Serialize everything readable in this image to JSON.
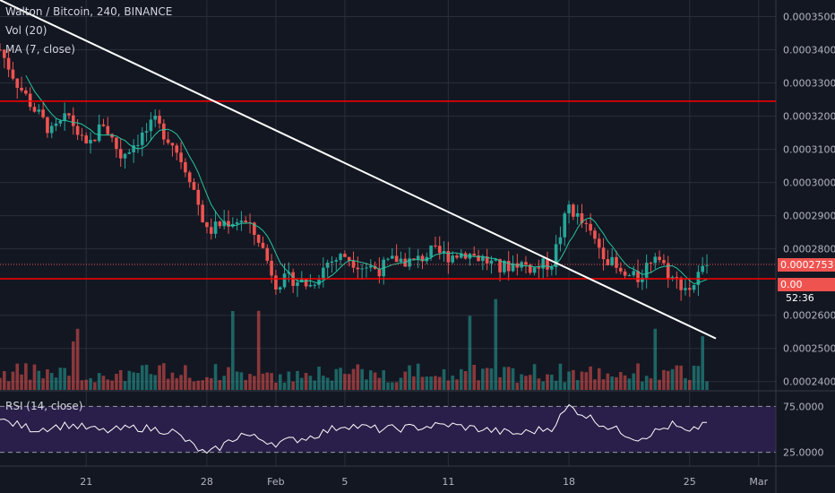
{
  "legend": {
    "symbol": "Walton / Bitcoin, 240, BINANCE",
    "vol": "Vol (20)",
    "ma": "MA (7, close)",
    "rsi": "RSI (14, close)"
  },
  "price_axis": {
    "ticks": [
      "0.0003500",
      "0.0003400",
      "0.0003300",
      "0.0003200",
      "0.0003100",
      "0.0003000",
      "0.0002900",
      "0.0002800",
      "0.0002600",
      "0.0002500",
      "0.0002400"
    ],
    "tick_values": [
      0.00035,
      0.00034,
      0.00033,
      0.00032,
      0.00031,
      0.0003,
      0.00029,
      0.00028,
      0.00026,
      0.00025,
      0.00024
    ],
    "current_price": "0.0002753",
    "current_value": 0.0002753,
    "countdown": "52:36",
    "partial_label": "0.00",
    "partial_value": 0.000272
  },
  "rsi_axis": {
    "ticks": [
      "75.0000",
      "25.0000"
    ],
    "tick_values": [
      75,
      25
    ]
  },
  "time_axis": {
    "labels": [
      "21",
      "28",
      "Feb",
      "5",
      "11",
      "18",
      "25",
      "Mar"
    ]
  },
  "drawings": {
    "resistance": 0.0003245,
    "support": 0.000271,
    "trendline_from": {
      "date": "Jan 16",
      "price": 0.000355
    },
    "trendline_to": {
      "date": "Feb 26",
      "price": 0.000253
    }
  },
  "colors": {
    "background": "#131722",
    "grid": "#2a2e39",
    "up": "#26a69a",
    "down": "#ef5350",
    "horizontal_line": "#ff0000",
    "trendline": "#ffffff",
    "ma": "#26c6a0",
    "rsi_line": "#ffffff",
    "rsi_band": "#2a1f4a"
  },
  "chart_data": {
    "type": "candlestick",
    "title": "Walton / Bitcoin, 240, BINANCE",
    "x_range": [
      "Jan 16",
      "Mar 2"
    ],
    "y_range": [
      0.0002375,
      0.000355
    ],
    "rsi_range": [
      10,
      90
    ],
    "price_path": [
      [
        "Jan 16",
        0.00034
      ],
      [
        "Jan 17",
        0.00033
      ],
      [
        "Jan 18",
        0.000322
      ],
      [
        "Jan 19",
        0.000315
      ],
      [
        "Jan 20",
        0.00032
      ],
      [
        "Jan 21",
        0.00031
      ],
      [
        "Jan 22",
        0.000318
      ],
      [
        "Jan 23",
        0.000308
      ],
      [
        "Jan 24",
        0.000313
      ],
      [
        "Jan 25",
        0.000318
      ],
      [
        "Jan 26",
        0.000312
      ],
      [
        "Jan 27",
        0.000302
      ],
      [
        "Jan 28",
        0.000285
      ],
      [
        "Jan 29",
        0.000288
      ],
      [
        "Jan 30",
        0.000289
      ],
      [
        "Jan 31",
        0.000283
      ],
      [
        "Feb 1",
        0.00027
      ],
      [
        "Feb 2",
        0.000271
      ],
      [
        "Feb 3",
        0.000269
      ],
      [
        "Feb 4",
        0.000276
      ],
      [
        "Feb 5",
        0.000278
      ],
      [
        "Feb 6",
        0.000275
      ],
      [
        "Feb 7",
        0.000274
      ],
      [
        "Feb 8",
        0.000277
      ],
      [
        "Feb 9",
        0.000276
      ],
      [
        "Feb 10",
        0.000279
      ],
      [
        "Feb 11",
        0.000278
      ],
      [
        "Feb 12",
        0.000279
      ],
      [
        "Feb 13",
        0.000277
      ],
      [
        "Feb 14",
        0.000274
      ],
      [
        "Feb 15",
        0.000276
      ],
      [
        "Feb 16",
        0.000274
      ],
      [
        "Feb 17",
        0.000276
      ],
      [
        "Feb 18",
        0.000293
      ],
      [
        "Feb 19",
        0.000286
      ],
      [
        "Feb 20",
        0.000279
      ],
      [
        "Feb 21",
        0.000272
      ],
      [
        "Feb 22",
        0.000271
      ],
      [
        "Feb 23",
        0.000279
      ],
      [
        "Feb 24",
        0.000271
      ],
      [
        "Feb 25",
        0.000268
      ],
      [
        "Feb 26",
        0.0002753
      ]
    ],
    "rsi_path": [
      [
        "Jan 16",
        60
      ],
      [
        "Jan 18",
        50
      ],
      [
        "Jan 20",
        55
      ],
      [
        "Jan 22",
        48
      ],
      [
        "Jan 24",
        52
      ],
      [
        "Jan 26",
        48
      ],
      [
        "Jan 28",
        22
      ],
      [
        "Jan 30",
        45
      ],
      [
        "Feb 1",
        35
      ],
      [
        "Feb 3",
        42
      ],
      [
        "Feb 5",
        55
      ],
      [
        "Feb 7",
        50
      ],
      [
        "Feb 9",
        52
      ],
      [
        "Feb 11",
        55
      ],
      [
        "Feb 13",
        50
      ],
      [
        "Feb 15",
        45
      ],
      [
        "Feb 17",
        52
      ],
      [
        "Feb 18",
        75
      ],
      [
        "Feb 20",
        55
      ],
      [
        "Feb 22",
        40
      ],
      [
        "Feb 24",
        55
      ],
      [
        "Feb 25",
        45
      ],
      [
        "Feb 26",
        60
      ]
    ]
  }
}
